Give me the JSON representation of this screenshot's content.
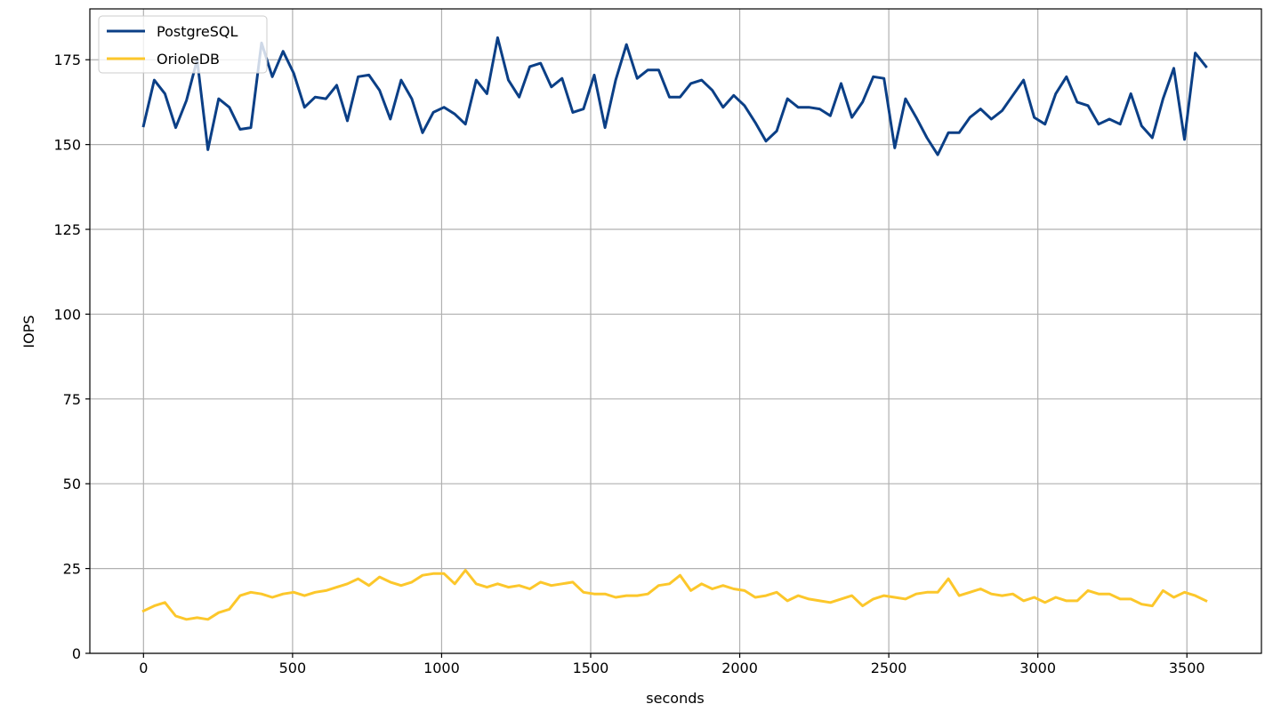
{
  "chart_data": {
    "type": "line",
    "title": "",
    "xlabel": "seconds",
    "ylabel": "IOPS",
    "xlim": [
      -180,
      3750
    ],
    "ylim": [
      0,
      190
    ],
    "xticks": [
      0,
      500,
      1000,
      1500,
      2000,
      2500,
      3000,
      3500
    ],
    "yticks": [
      0,
      25,
      50,
      75,
      100,
      125,
      150,
      175
    ],
    "grid": true,
    "legend_position": "top-left",
    "x": [
      0,
      36,
      72,
      108,
      144,
      180,
      216,
      252,
      288,
      324,
      360,
      396,
      432,
      468,
      504,
      540,
      576,
      612,
      648,
      684,
      720,
      756,
      792,
      828,
      864,
      900,
      936,
      972,
      1008,
      1044,
      1080,
      1116,
      1152,
      1188,
      1224,
      1260,
      1296,
      1332,
      1368,
      1404,
      1440,
      1476,
      1512,
      1548,
      1584,
      1620,
      1656,
      1692,
      1728,
      1764,
      1800,
      1836,
      1872,
      1908,
      1944,
      1980,
      2016,
      2052,
      2088,
      2124,
      2160,
      2196,
      2232,
      2268,
      2304,
      2340,
      2376,
      2412,
      2448,
      2484,
      2520,
      2556,
      2592,
      2628,
      2664,
      2700,
      2736,
      2772,
      2808,
      2844,
      2880,
      2916,
      2952,
      2988,
      3024,
      3060,
      3096,
      3132,
      3168,
      3204,
      3240,
      3276,
      3312,
      3348,
      3384,
      3420,
      3456,
      3492,
      3528,
      3564
    ],
    "series": [
      {
        "name": "PostgreSQL",
        "color": "#0b3f86",
        "values": [
          155.5,
          169.0,
          165.0,
          155.0,
          163.0,
          175.0,
          148.5,
          163.5,
          161.0,
          154.5,
          155.0,
          180.0,
          170.0,
          177.5,
          171.0,
          161.0,
          164.0,
          163.5,
          167.5,
          157.0,
          170.0,
          170.5,
          166.0,
          157.5,
          169.0,
          163.5,
          153.5,
          159.5,
          161.0,
          159.0,
          156.0,
          169.0,
          165.0,
          181.5,
          169.0,
          164.0,
          173.0,
          174.0,
          167.0,
          169.5,
          159.5,
          160.5,
          170.5,
          155.0,
          169.0,
          179.5,
          169.5,
          172.0,
          172.0,
          164.0,
          164.0,
          168.0,
          169.0,
          166.0,
          161.0,
          164.5,
          161.5,
          156.5,
          151.0,
          154.0,
          163.5,
          161.0,
          161.0,
          160.5,
          158.5,
          168.0,
          158.0,
          162.5,
          170.0,
          169.5,
          149.0,
          163.5,
          158.0,
          152.0,
          147.0,
          153.5,
          153.5,
          158.0,
          160.5,
          157.5,
          160.0,
          164.5,
          169.0,
          158.0,
          156.0,
          165.0,
          170.0,
          162.5,
          161.5,
          156.0,
          157.5,
          156.0,
          165.0,
          155.5,
          152.0,
          163.5,
          172.5,
          151.5,
          177.0,
          173.0
        ]
      },
      {
        "name": "OrioleDB",
        "color": "#fcc72b",
        "values": [
          12.5,
          14.0,
          15.0,
          11.0,
          10.0,
          10.5,
          10.0,
          12.0,
          13.0,
          17.0,
          18.0,
          17.5,
          16.5,
          17.5,
          18.0,
          17.0,
          18.0,
          18.5,
          19.5,
          20.5,
          22.0,
          20.0,
          22.5,
          21.0,
          20.0,
          21.0,
          23.0,
          23.5,
          23.5,
          20.5,
          24.5,
          20.5,
          19.5,
          20.5,
          19.5,
          20.0,
          19.0,
          21.0,
          20.0,
          20.5,
          21.0,
          18.0,
          17.5,
          17.5,
          16.5,
          17.0,
          17.0,
          17.5,
          20.0,
          20.5,
          23.0,
          18.5,
          20.5,
          19.0,
          20.0,
          19.0,
          18.5,
          16.5,
          17.0,
          18.0,
          15.5,
          17.0,
          16.0,
          15.5,
          15.0,
          16.0,
          17.0,
          14.0,
          16.0,
          17.0,
          16.5,
          16.0,
          17.5,
          18.0,
          18.0,
          22.0,
          17.0,
          18.0,
          19.0,
          17.5,
          17.0,
          17.5,
          15.5,
          16.5,
          15.0,
          16.5,
          15.5,
          15.5,
          18.5,
          17.5,
          17.5,
          16.0,
          16.0,
          14.5,
          14.0,
          18.5,
          16.5,
          18.0,
          17.0,
          15.5
        ]
      }
    ]
  }
}
